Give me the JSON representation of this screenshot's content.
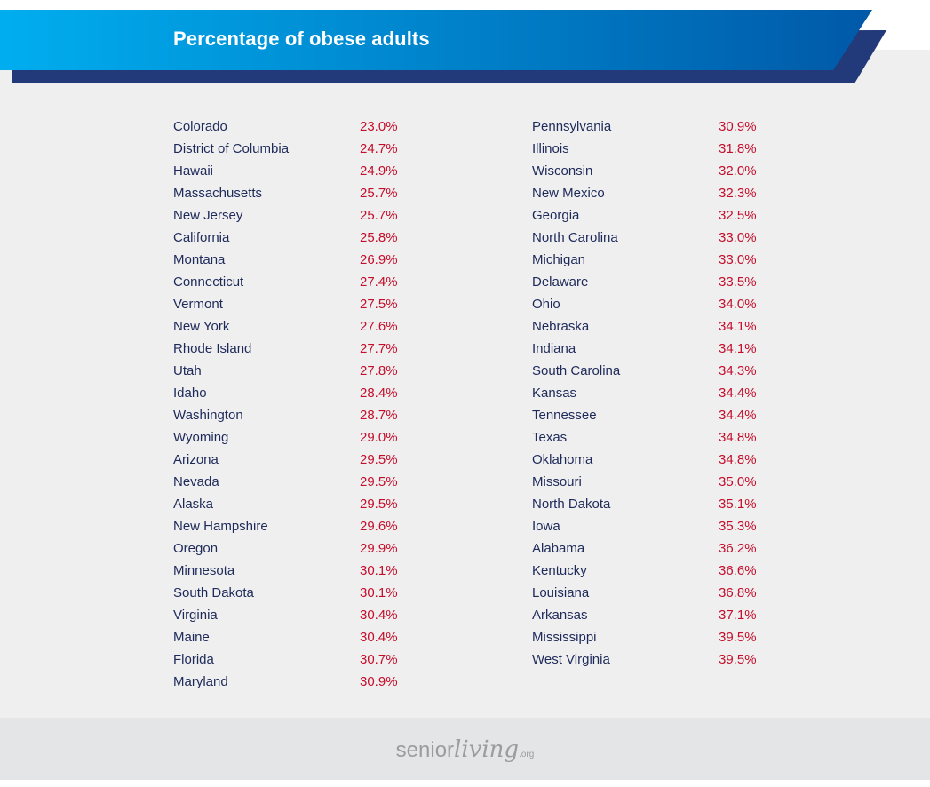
{
  "title": "Percentage of obese adults",
  "colors": {
    "banner_start": "#00aeef",
    "banner_end": "#0059a8",
    "banner_shadow": "#233a7a",
    "state_text": "#1e2a5a",
    "value_text": "#c40e2c",
    "panel": "#efefef",
    "footer": "#e3e5e6"
  },
  "chart_data": {
    "type": "table",
    "columns": [
      {
        "rows": [
          {
            "state": "Colorado",
            "value": "23.0%"
          },
          {
            "state": "District of Columbia",
            "value": "24.7%"
          },
          {
            "state": "Hawaii",
            "value": "24.9%"
          },
          {
            "state": "Massachusetts",
            "value": "25.7%"
          },
          {
            "state": "New Jersey",
            "value": "25.7%"
          },
          {
            "state": "California",
            "value": "25.8%"
          },
          {
            "state": "Montana",
            "value": "26.9%"
          },
          {
            "state": "Connecticut",
            "value": "27.4%"
          },
          {
            "state": "Vermont",
            "value": "27.5%"
          },
          {
            "state": "New York",
            "value": "27.6%"
          },
          {
            "state": "Rhode Island",
            "value": "27.7%"
          },
          {
            "state": "Utah",
            "value": "27.8%"
          },
          {
            "state": "Idaho",
            "value": "28.4%"
          },
          {
            "state": "Washington",
            "value": "28.7%"
          },
          {
            "state": "Wyoming",
            "value": "29.0%"
          },
          {
            "state": "Arizona",
            "value": "29.5%"
          },
          {
            "state": "Nevada",
            "value": "29.5%"
          },
          {
            "state": "Alaska",
            "value": "29.5%"
          },
          {
            "state": "New Hampshire",
            "value": "29.6%"
          },
          {
            "state": "Oregon",
            "value": "29.9%"
          },
          {
            "state": "Minnesota",
            "value": "30.1%"
          },
          {
            "state": "South Dakota",
            "value": "30.1%"
          },
          {
            "state": "Virginia",
            "value": "30.4%"
          },
          {
            "state": "Maine",
            "value": "30.4%"
          },
          {
            "state": "Florida",
            "value": "30.7%"
          },
          {
            "state": "Maryland",
            "value": "30.9%"
          }
        ]
      },
      {
        "rows": [
          {
            "state": "Pennsylvania",
            "value": "30.9%"
          },
          {
            "state": "Illinois",
            "value": "31.8%"
          },
          {
            "state": "Wisconsin",
            "value": "32.0%"
          },
          {
            "state": "New Mexico",
            "value": "32.3%"
          },
          {
            "state": "Georgia",
            "value": "32.5%"
          },
          {
            "state": "North Carolina",
            "value": "33.0%"
          },
          {
            "state": "Michigan",
            "value": "33.0%"
          },
          {
            "state": "Delaware",
            "value": "33.5%"
          },
          {
            "state": "Ohio",
            "value": "34.0%"
          },
          {
            "state": "Nebraska",
            "value": "34.1%"
          },
          {
            "state": "Indiana",
            "value": "34.1%"
          },
          {
            "state": "South Carolina",
            "value": "34.3%"
          },
          {
            "state": "Kansas",
            "value": "34.4%"
          },
          {
            "state": "Tennessee",
            "value": "34.4%"
          },
          {
            "state": "Texas",
            "value": "34.8%"
          },
          {
            "state": "Oklahoma",
            "value": "34.8%"
          },
          {
            "state": "Missouri",
            "value": "35.0%"
          },
          {
            "state": "North Dakota",
            "value": "35.1%"
          },
          {
            "state": "Iowa",
            "value": "35.3%"
          },
          {
            "state": "Alabama",
            "value": "36.2%"
          },
          {
            "state": "Kentucky",
            "value": "36.6%"
          },
          {
            "state": "Louisiana",
            "value": "36.8%"
          },
          {
            "state": "Arkansas",
            "value": "37.1%"
          },
          {
            "state": "Mississippi",
            "value": "39.5%"
          },
          {
            "state": "West Virginia",
            "value": "39.5%"
          }
        ]
      }
    ]
  },
  "footer": {
    "logo_part1": "senior",
    "logo_part2": "living",
    "logo_part3": ".org"
  }
}
